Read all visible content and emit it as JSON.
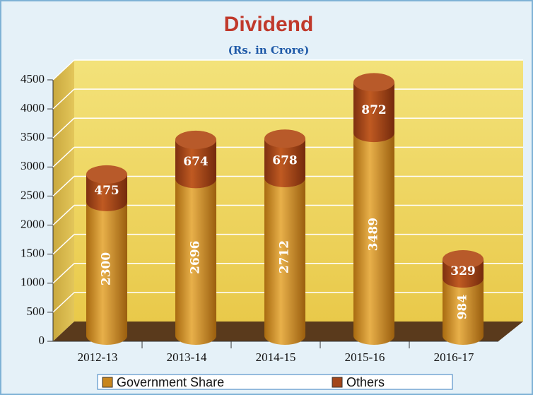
{
  "chart_data": {
    "type": "bar",
    "stacked": true,
    "title": "Dividend",
    "subtitle": "(Rs. in Crore)",
    "categories": [
      "2012-13",
      "2013-14",
      "2014-15",
      "2015-16",
      "2016-17"
    ],
    "series": [
      {
        "name": "Government Share",
        "color": "#c8861e",
        "values": [
          2300,
          2696,
          2712,
          3489,
          984
        ]
      },
      {
        "name": "Others",
        "color": "#a3461a",
        "values": [
          475,
          674,
          678,
          872,
          329
        ]
      }
    ],
    "ylim": [
      0,
      4500
    ],
    "yticks": [
      0,
      500,
      1000,
      1500,
      2000,
      2500,
      3000,
      3500,
      4000,
      4500
    ],
    "grid": true,
    "legend": "bottom"
  }
}
